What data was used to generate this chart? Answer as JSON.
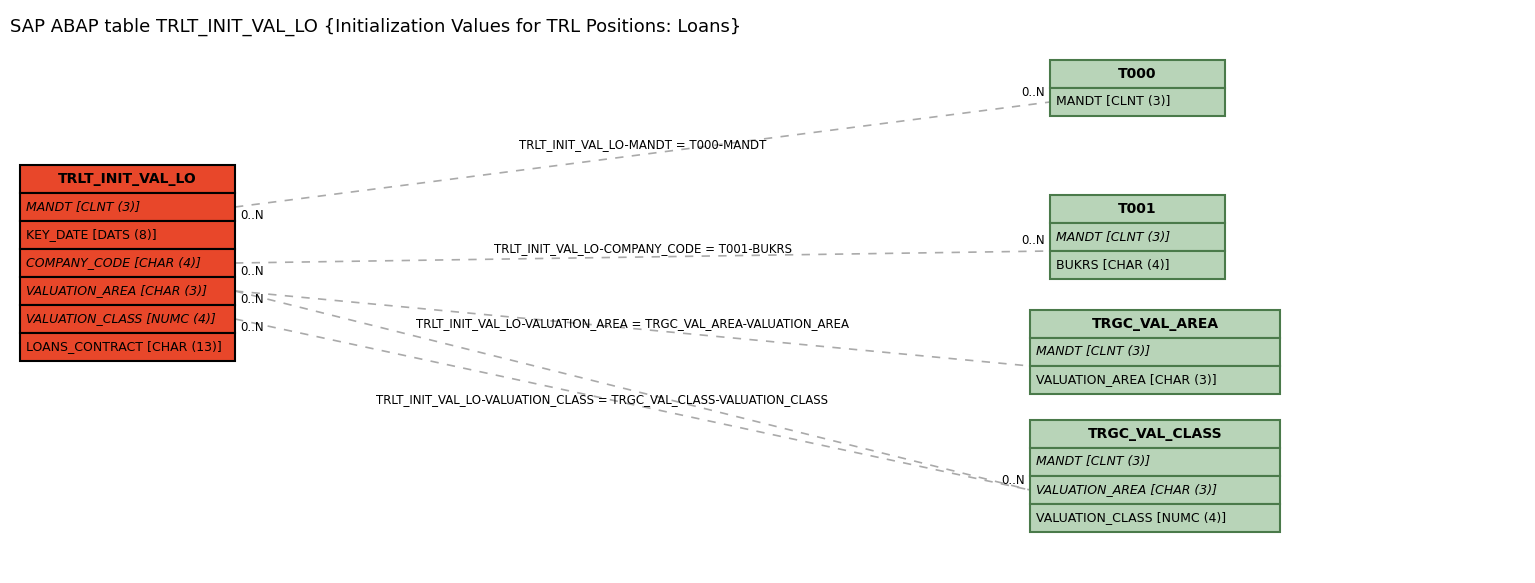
{
  "title": "SAP ABAP table TRLT_INIT_VAL_LO {Initialization Values for TRL Positions: Loans}",
  "title_fontsize": 13,
  "bg_color": "#ffffff",
  "main_table": {
    "name": "TRLT_INIT_VAL_LO",
    "header_color": "#e8472a",
    "body_color": "#e8472a",
    "border_color": "#000000",
    "fields": [
      {
        "text": "MANDT [CLNT (3)]",
        "italic": true,
        "underline": true
      },
      {
        "text": "KEY_DATE [DATS (8)]",
        "italic": false,
        "underline": false
      },
      {
        "text": "COMPANY_CODE [CHAR (4)]",
        "italic": true,
        "underline": true
      },
      {
        "text": "VALUATION_AREA [CHAR (3)]",
        "italic": true,
        "underline": true
      },
      {
        "text": "VALUATION_CLASS [NUMC (4)]",
        "italic": true,
        "underline": true
      },
      {
        "text": "LOANS_CONTRACT [CHAR (13)]",
        "italic": false,
        "underline": true
      }
    ]
  },
  "ref_tables": [
    {
      "name": "T000",
      "header_color": "#b8d4b8",
      "border_color": "#4a7a4a",
      "fields": [
        {
          "text": "MANDT [CLNT (3)]",
          "italic": false,
          "underline": true
        }
      ]
    },
    {
      "name": "T001",
      "header_color": "#b8d4b8",
      "border_color": "#4a7a4a",
      "fields": [
        {
          "text": "MANDT [CLNT (3)]",
          "italic": true,
          "underline": true
        },
        {
          "text": "BUKRS [CHAR (4)]",
          "italic": false,
          "underline": true
        }
      ]
    },
    {
      "name": "TRGC_VAL_AREA",
      "header_color": "#b8d4b8",
      "border_color": "#4a7a4a",
      "fields": [
        {
          "text": "MANDT [CLNT (3)]",
          "italic": true,
          "underline": true
        },
        {
          "text": "VALUATION_AREA [CHAR (3)]",
          "italic": false,
          "underline": true
        }
      ]
    },
    {
      "name": "TRGC_VAL_CLASS",
      "header_color": "#b8d4b8",
      "border_color": "#4a7a4a",
      "fields": [
        {
          "text": "MANDT [CLNT (3)]",
          "italic": true,
          "underline": true
        },
        {
          "text": "VALUATION_AREA [CHAR (3)]",
          "italic": true,
          "underline": true
        },
        {
          "text": "VALUATION_CLASS [NUMC (4)]",
          "italic": false,
          "underline": true
        }
      ]
    }
  ],
  "connections": [
    {
      "label": "TRLT_INIT_VAL_LO-MANDT = T000-MANDT",
      "from_row": 0,
      "to_table": 0,
      "left_card": "0..N",
      "right_card": "0..N"
    },
    {
      "label": "TRLT_INIT_VAL_LO-COMPANY_CODE = T001-BUKRS",
      "from_row": 2,
      "to_table": 1,
      "left_card": "0..N",
      "right_card": "0..N"
    },
    {
      "label": "TRLT_INIT_VAL_LO-VALUATION_AREA = TRGC_VAL_AREA-VALUATION_AREA",
      "from_row": 3,
      "to_table": 2,
      "left_card": "0..N",
      "right_card": ""
    },
    {
      "label": "TRLT_INIT_VAL_LO-VALUATION_CLASS = TRGC_VAL_CLASS-VALUATION_CLASS",
      "from_row": 4,
      "to_table": 3,
      "left_card": "0..N",
      "right_card": "0..N"
    }
  ]
}
